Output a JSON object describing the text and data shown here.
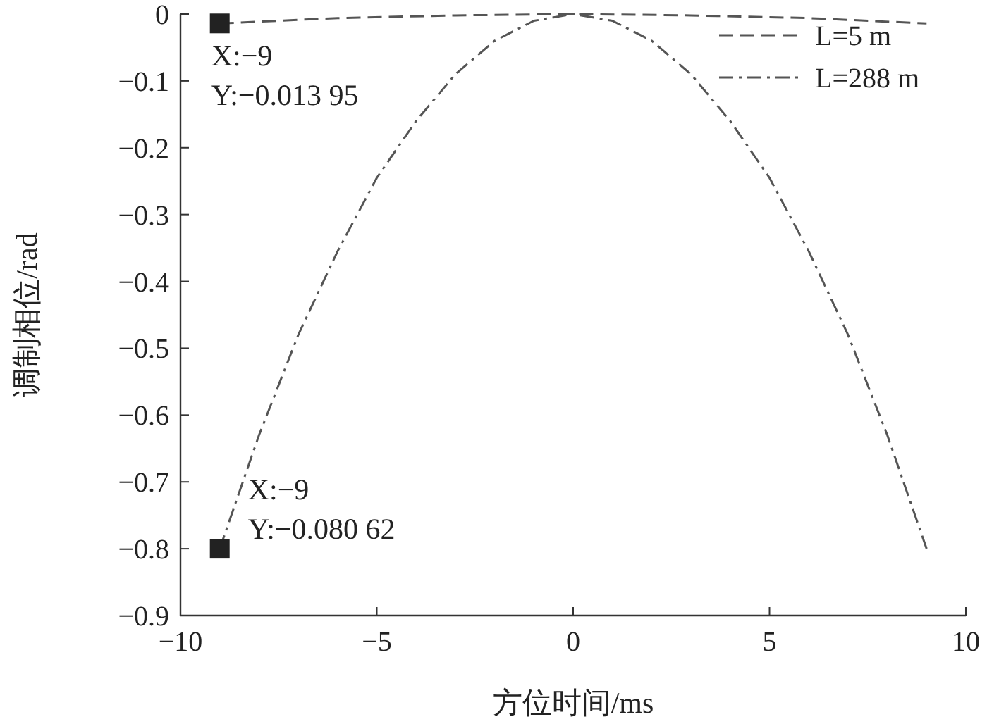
{
  "chart_data": {
    "type": "line",
    "xlabel": "方位时间/ms",
    "ylabel": "调制相位/rad",
    "xlim": [
      -10,
      10
    ],
    "xticks": [
      -10,
      -5,
      0,
      5,
      10
    ],
    "ylim": [
      -0.9,
      0
    ],
    "yticks": [
      0,
      -0.1,
      -0.2,
      -0.3,
      -0.4,
      -0.5,
      -0.6,
      -0.7,
      -0.8,
      -0.9
    ],
    "grid": false,
    "legend": "top right",
    "series": [
      {
        "name": "L=5 m",
        "color": "#555555",
        "line_style": "dashed",
        "x": [
          -9,
          -6,
          -3,
          0,
          3,
          6,
          9
        ],
        "values": [
          -0.014,
          -0.006,
          -0.002,
          0,
          -0.002,
          -0.006,
          -0.014
        ]
      },
      {
        "name": "L=288 m",
        "color": "#555555",
        "line_style": "dashdot",
        "x": [
          -9,
          -8,
          -7,
          -6,
          -5,
          -4,
          -3,
          -2,
          -1,
          0,
          1,
          2,
          3,
          4,
          5,
          6,
          7,
          8,
          9
        ],
        "values": [
          -0.8,
          -0.63,
          -0.48,
          -0.355,
          -0.245,
          -0.16,
          -0.09,
          -0.04,
          -0.01,
          0,
          -0.01,
          -0.04,
          -0.09,
          -0.16,
          -0.245,
          -0.355,
          -0.48,
          -0.63,
          -0.8
        ]
      }
    ],
    "annotations": [
      {
        "text": "X:−9\nY:−0.013 95",
        "x": -9,
        "y": -0.014
      },
      {
        "text": "X:−9\nY:−0.080 62",
        "x": -9,
        "y": -0.8
      }
    ]
  }
}
